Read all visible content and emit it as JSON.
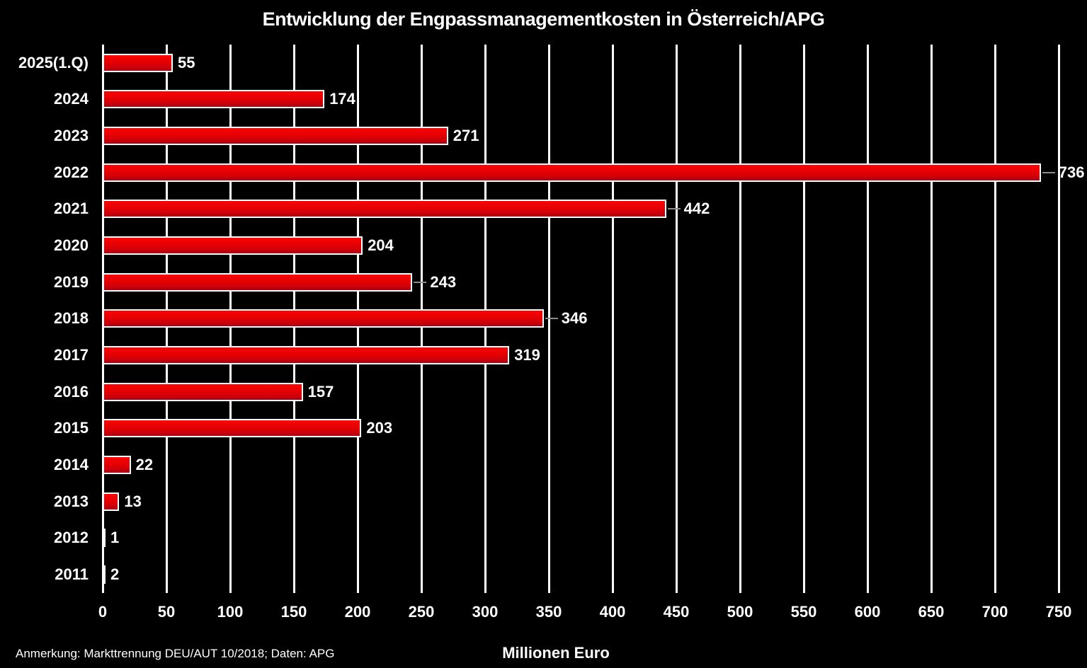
{
  "title": "Entwicklung der Engpassmanagementkosten in Österreich/APG",
  "footnote": "Anmerkung: Markttrennung DEU/AUT 10/2018; Daten: APG",
  "xlabel": "Millionen Euro",
  "colors": {
    "background": "#000000",
    "text": "#ffffff",
    "gridline": "#ffffff",
    "bar_border": "#ffffff",
    "bar_gradient_top": "#f90606",
    "bar_gradient_mid": "#e60002",
    "bar_gradient_bottom": "#ab0012",
    "leader_line": "#8c8c8c"
  },
  "chart_data": {
    "type": "bar",
    "orientation": "horizontal",
    "title": "Entwicklung der Engpassmanagementkosten in Österreich/APG",
    "xlabel": "Millionen Euro",
    "ylabel": "",
    "xlim": [
      0,
      750
    ],
    "xticks": [
      0,
      50,
      100,
      150,
      200,
      250,
      300,
      350,
      400,
      450,
      500,
      550,
      600,
      650,
      700,
      750
    ],
    "grid": true,
    "legend": "none",
    "categories": [
      "2025(1.Q)",
      "2024",
      "2023",
      "2022",
      "2021",
      "2020",
      "2019",
      "2018",
      "2017",
      "2016",
      "2015",
      "2014",
      "2013",
      "2012",
      "2011"
    ],
    "values": [
      55,
      174,
      271,
      736,
      442,
      204,
      243,
      346,
      319,
      157,
      203,
      22,
      13,
      1,
      2
    ],
    "data_label_has_leader_line": [
      false,
      false,
      false,
      true,
      true,
      false,
      true,
      true,
      false,
      false,
      false,
      false,
      false,
      false,
      false
    ],
    "annotation": "Anmerkung: Markttrennung DEU/AUT 10/2018; Daten: APG"
  }
}
